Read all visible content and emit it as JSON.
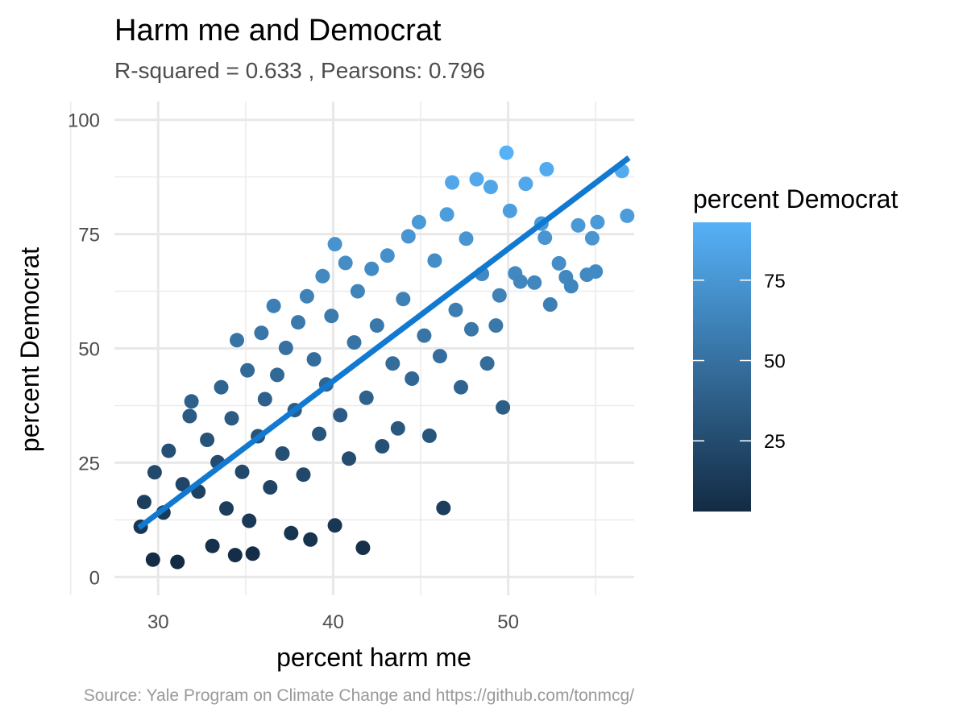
{
  "chart_data": {
    "type": "scatter",
    "title": "Harm me and Democrat",
    "subtitle": "R-squared =  0.633 , Pearsons: 0.796",
    "xlabel": "percent harm me",
    "ylabel": "percent Democrat",
    "caption": "Source: Yale Program on Climate Change and https://github.com/tonmcg/",
    "xlim": [
      27.5,
      57.2
    ],
    "ylim": [
      -4,
      104
    ],
    "x_ticks": [
      30,
      40,
      50
    ],
    "y_ticks": [
      0,
      25,
      50,
      75,
      100
    ],
    "grid": true,
    "legend": {
      "title": "percent Democrat",
      "placement": "right",
      "type": "continuous-colorbar",
      "ticks": [
        25,
        50,
        75
      ],
      "range": [
        3,
        93
      ],
      "color_low": "#132B43",
      "color_high": "#56B1F7"
    },
    "series": [
      {
        "points": [
          [
            29.0,
            11.0
          ],
          [
            29.2,
            16.4
          ],
          [
            29.7,
            3.8
          ],
          [
            29.8,
            22.9
          ],
          [
            30.3,
            14.1
          ],
          [
            30.6,
            27.6
          ],
          [
            31.1,
            3.3
          ],
          [
            31.4,
            20.3
          ],
          [
            31.8,
            35.2
          ],
          [
            31.9,
            38.4
          ],
          [
            32.3,
            18.7
          ],
          [
            32.8,
            30.0
          ],
          [
            33.1,
            6.8
          ],
          [
            33.4,
            25.1
          ],
          [
            33.6,
            41.5
          ],
          [
            33.9,
            15.0
          ],
          [
            34.2,
            34.7
          ],
          [
            34.4,
            4.8
          ],
          [
            34.5,
            51.8
          ],
          [
            34.8,
            23.0
          ],
          [
            35.1,
            45.2
          ],
          [
            35.2,
            12.3
          ],
          [
            35.4,
            5.1
          ],
          [
            35.7,
            30.8
          ],
          [
            35.9,
            53.4
          ],
          [
            36.1,
            38.9
          ],
          [
            36.4,
            19.6
          ],
          [
            36.6,
            59.3
          ],
          [
            36.8,
            44.2
          ],
          [
            37.1,
            27.0
          ],
          [
            37.3,
            50.1
          ],
          [
            37.6,
            9.6
          ],
          [
            37.8,
            36.5
          ],
          [
            38.0,
            55.7
          ],
          [
            38.3,
            22.4
          ],
          [
            38.5,
            61.4
          ],
          [
            38.7,
            8.2
          ],
          [
            38.9,
            47.6
          ],
          [
            39.2,
            31.3
          ],
          [
            39.4,
            65.8
          ],
          [
            39.6,
            42.1
          ],
          [
            39.9,
            57.1
          ],
          [
            40.1,
            11.3
          ],
          [
            40.1,
            72.8
          ],
          [
            40.4,
            35.4
          ],
          [
            40.7,
            68.7
          ],
          [
            40.9,
            25.9
          ],
          [
            41.2,
            51.3
          ],
          [
            41.4,
            62.5
          ],
          [
            41.7,
            6.4
          ],
          [
            41.9,
            39.2
          ],
          [
            42.2,
            67.4
          ],
          [
            42.5,
            55.0
          ],
          [
            42.8,
            28.6
          ],
          [
            43.1,
            70.3
          ],
          [
            43.4,
            46.7
          ],
          [
            43.7,
            32.5
          ],
          [
            44.0,
            60.8
          ],
          [
            44.3,
            74.5
          ],
          [
            44.5,
            43.4
          ],
          [
            44.9,
            77.6
          ],
          [
            45.2,
            52.8
          ],
          [
            45.5,
            30.9
          ],
          [
            45.8,
            69.2
          ],
          [
            46.1,
            48.3
          ],
          [
            46.3,
            15.1
          ],
          [
            46.5,
            79.3
          ],
          [
            46.8,
            86.3
          ],
          [
            47.0,
            58.4
          ],
          [
            47.3,
            41.5
          ],
          [
            47.6,
            74.0
          ],
          [
            47.9,
            54.2
          ],
          [
            48.2,
            87.0
          ],
          [
            48.5,
            66.3
          ],
          [
            48.8,
            46.7
          ],
          [
            49.0,
            85.3
          ],
          [
            49.3,
            55.0
          ],
          [
            49.5,
            61.6
          ],
          [
            49.7,
            37.1
          ],
          [
            49.9,
            92.8
          ],
          [
            50.1,
            80.1
          ],
          [
            50.4,
            66.4
          ],
          [
            50.7,
            64.6
          ],
          [
            51.0,
            86.0
          ],
          [
            51.5,
            64.4
          ],
          [
            51.9,
            77.3
          ],
          [
            52.1,
            74.2
          ],
          [
            52.2,
            89.2
          ],
          [
            52.4,
            59.6
          ],
          [
            52.9,
            68.6
          ],
          [
            53.3,
            65.6
          ],
          [
            53.6,
            63.6
          ],
          [
            54.0,
            76.9
          ],
          [
            54.5,
            66.1
          ],
          [
            54.8,
            74.1
          ],
          [
            55.0,
            66.8
          ],
          [
            55.1,
            77.6
          ],
          [
            56.5,
            88.8
          ],
          [
            56.8,
            79.0
          ]
        ]
      }
    ],
    "trendline": {
      "type": "linear",
      "color": "#1279D1",
      "from": [
        28.9,
        10.8
      ],
      "to": [
        56.9,
        91.7
      ]
    }
  }
}
